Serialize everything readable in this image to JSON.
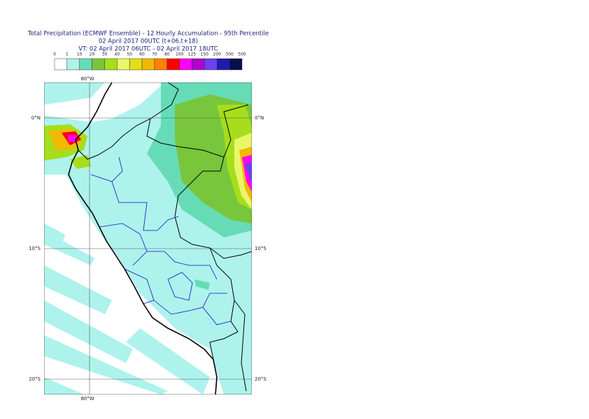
{
  "header": {
    "title": "Total Precipitation (ECMWF Ensemble) - 12 Hourly Accumulation - 95th Percentile",
    "line2": "02 April 2017 00UTC (t+06,t+18)",
    "line3": "VT: 02 April 2017 06UTC - 02 April 2017 18UTC"
  },
  "legend": {
    "labels": [
      "0",
      "1",
      "10",
      "20",
      "30",
      "40",
      "50",
      "60",
      "70",
      "80",
      "100",
      "125",
      "150",
      "200",
      "300",
      "500"
    ],
    "colors": [
      "#ffffff",
      "#aef2ec",
      "#66dcb6",
      "#78c63c",
      "#a6de1c",
      "#eaf66a",
      "#e4de14",
      "#f4b800",
      "#ff8200",
      "#ff0000",
      "#ff00ff",
      "#b000d0",
      "#6a40f0",
      "#1c1cb0",
      "#0c0c50"
    ]
  },
  "map": {
    "lon_labels": [
      "80°W"
    ],
    "lat_labels": [
      "0°N",
      "10°S",
      "20°S"
    ]
  }
}
